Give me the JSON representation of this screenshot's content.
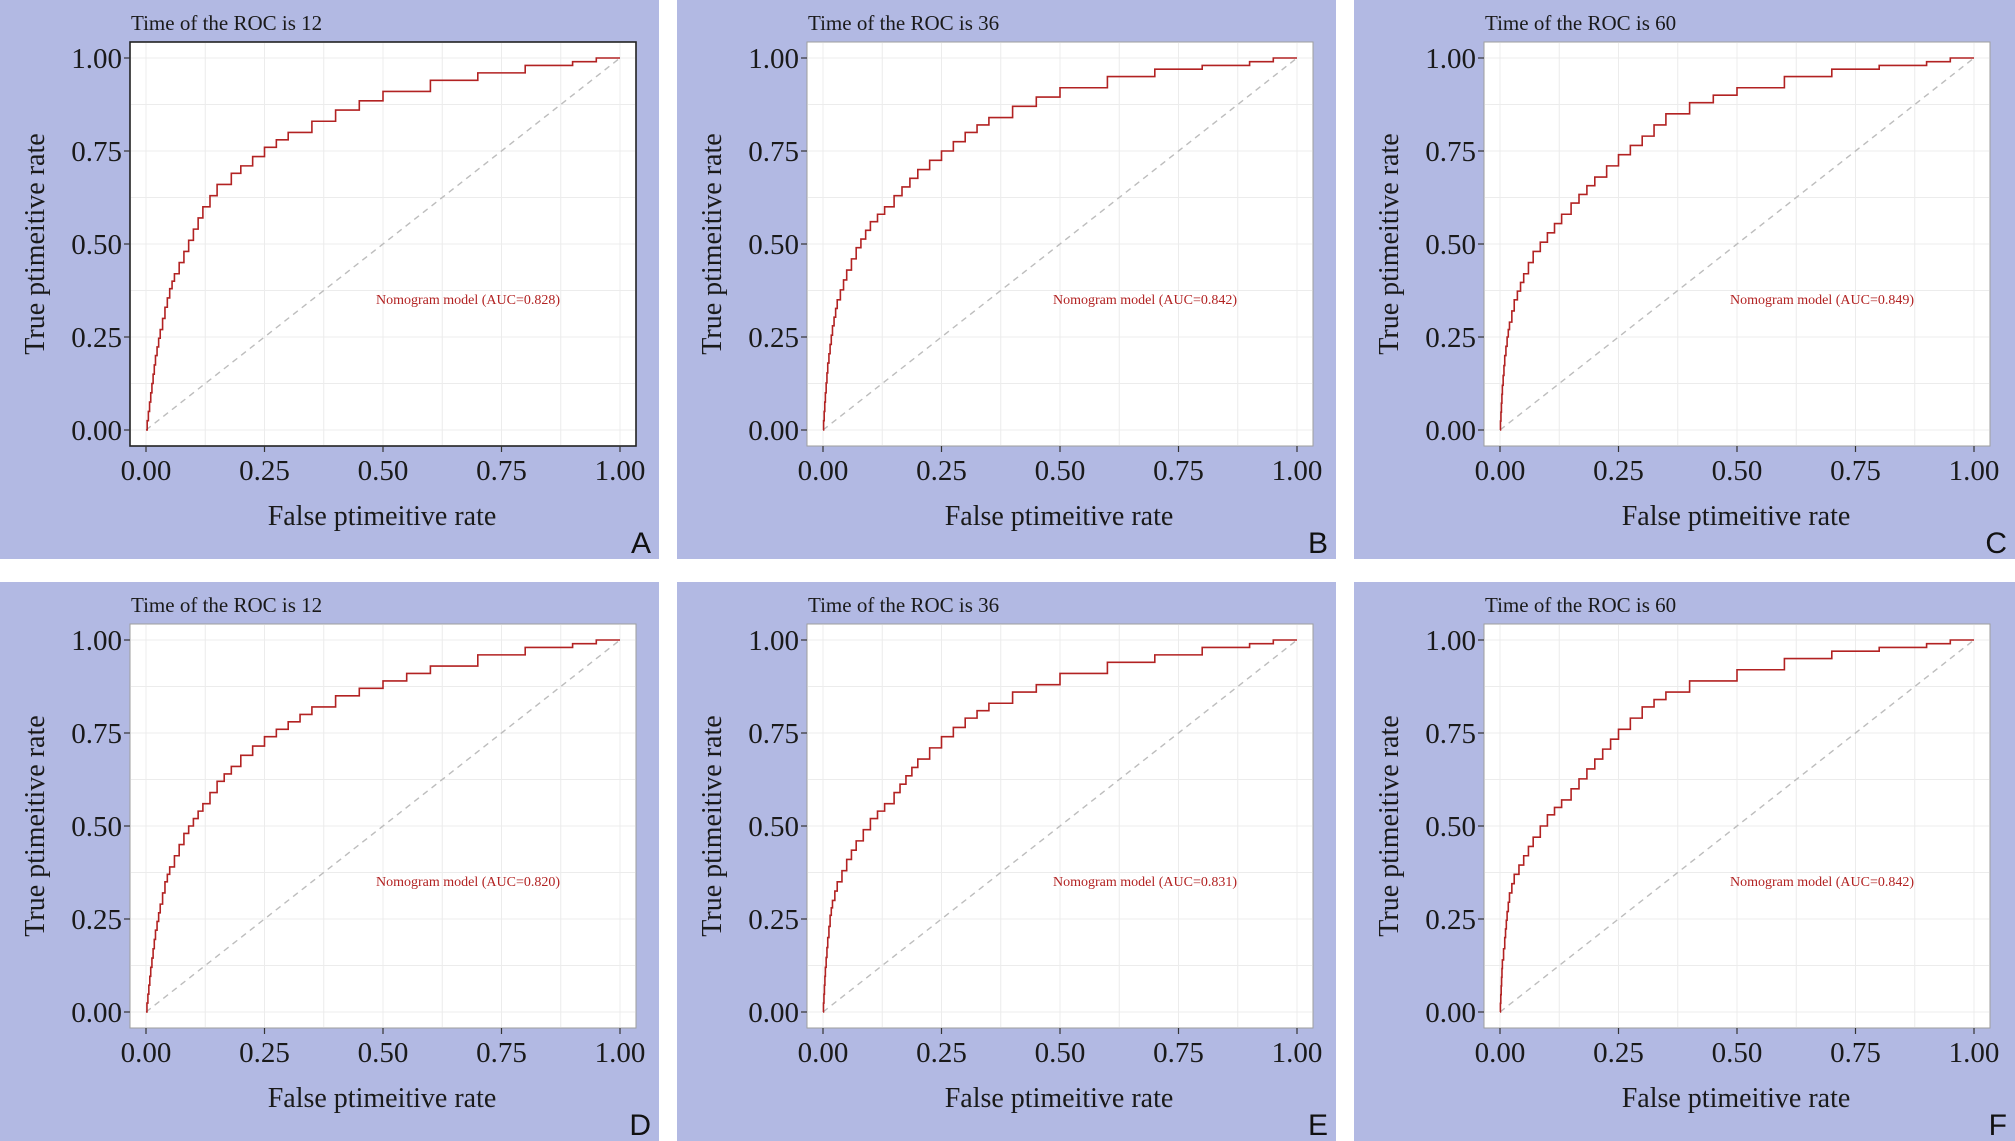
{
  "colors": {
    "panel_background": "#b2b9e3",
    "plot_background": "#ffffff",
    "roc_curve": "#b22222",
    "diagonal": "#bdbdbd",
    "gridline": "#ececec",
    "text": "#1a1a1a"
  },
  "chart_data": [
    {
      "type": "line",
      "panel_label": "A",
      "title": "Time of the ROC is 12",
      "xlabel": "False ptimeitive rate",
      "ylabel": "True ptimeitive rate",
      "xlim": [
        0,
        1
      ],
      "ylim": [
        0,
        1
      ],
      "xticks": [
        "0.00",
        "0.25",
        "0.50",
        "0.75",
        "1.00"
      ],
      "yticks": [
        "0.00",
        "0.25",
        "0.50",
        "0.75",
        "1.00"
      ],
      "grid": true,
      "plot_border": "dark",
      "annotation": "Nomogram model (AUC=0.828)",
      "series": [
        {
          "x": [
            0,
            0.01,
            0.02,
            0.03,
            0.04,
            0.05,
            0.06,
            0.08,
            0.1,
            0.12,
            0.15,
            0.18,
            0.2,
            0.25,
            0.3,
            0.35,
            0.4,
            0.5,
            0.6,
            0.7,
            0.8,
            0.9,
            0.95,
            1.0
          ],
          "y": [
            0,
            0.1,
            0.2,
            0.27,
            0.33,
            0.38,
            0.42,
            0.48,
            0.54,
            0.6,
            0.66,
            0.69,
            0.71,
            0.76,
            0.8,
            0.83,
            0.86,
            0.91,
            0.94,
            0.96,
            0.98,
            0.99,
            1.0,
            1.0
          ]
        },
        {
          "x": [
            0,
            1
          ],
          "y": [
            0,
            1
          ],
          "style": "dashed"
        }
      ]
    },
    {
      "type": "line",
      "panel_label": "B",
      "title": "Time of the ROC is 36",
      "xlabel": "False ptimeitive rate",
      "ylabel": "True ptimeitive rate",
      "xlim": [
        0,
        1
      ],
      "ylim": [
        0,
        1
      ],
      "xticks": [
        "0.00",
        "0.25",
        "0.50",
        "0.75",
        "1.00"
      ],
      "yticks": [
        "0.00",
        "0.25",
        "0.50",
        "0.75",
        "1.00"
      ],
      "grid": true,
      "plot_border": "light",
      "annotation": "Nomogram model (AUC=0.842)",
      "series": [
        {
          "x": [
            0,
            0.005,
            0.01,
            0.015,
            0.02,
            0.03,
            0.05,
            0.07,
            0.1,
            0.13,
            0.15,
            0.2,
            0.25,
            0.3,
            0.35,
            0.4,
            0.5,
            0.6,
            0.7,
            0.8,
            0.9,
            0.95,
            1.0
          ],
          "y": [
            0,
            0.1,
            0.18,
            0.23,
            0.28,
            0.35,
            0.43,
            0.49,
            0.56,
            0.6,
            0.63,
            0.7,
            0.75,
            0.8,
            0.84,
            0.87,
            0.92,
            0.95,
            0.97,
            0.98,
            0.99,
            1.0,
            1.0
          ]
        },
        {
          "x": [
            0,
            1
          ],
          "y": [
            0,
            1
          ],
          "style": "dashed"
        }
      ]
    },
    {
      "type": "line",
      "panel_label": "C",
      "title": "Time of the ROC is 60",
      "xlabel": "False ptimeitive rate",
      "ylabel": "True ptimeitive rate",
      "xlim": [
        0,
        1
      ],
      "ylim": [
        0,
        1
      ],
      "xticks": [
        "0.00",
        "0.25",
        "0.50",
        "0.75",
        "1.00"
      ],
      "yticks": [
        "0.00",
        "0.25",
        "0.50",
        "0.75",
        "1.00"
      ],
      "grid": true,
      "plot_border": "light",
      "annotation": "Nomogram model (AUC=0.849)",
      "series": [
        {
          "x": [
            0,
            0.005,
            0.01,
            0.015,
            0.02,
            0.03,
            0.05,
            0.07,
            0.1,
            0.13,
            0.15,
            0.2,
            0.25,
            0.3,
            0.35,
            0.4,
            0.5,
            0.6,
            0.7,
            0.8,
            0.9,
            0.95,
            1.0
          ],
          "y": [
            0,
            0.12,
            0.2,
            0.25,
            0.29,
            0.35,
            0.42,
            0.48,
            0.53,
            0.58,
            0.61,
            0.68,
            0.74,
            0.79,
            0.85,
            0.88,
            0.92,
            0.95,
            0.97,
            0.98,
            0.99,
            1.0,
            1.0
          ]
        },
        {
          "x": [
            0,
            1
          ],
          "y": [
            0,
            1
          ],
          "style": "dashed"
        }
      ]
    },
    {
      "type": "line",
      "panel_label": "D",
      "title": "Time of the ROC is 12",
      "xlabel": "False ptimeitive rate",
      "ylabel": "True ptimeitive rate",
      "xlim": [
        0,
        1
      ],
      "ylim": [
        0,
        1
      ],
      "xticks": [
        "0.00",
        "0.25",
        "0.50",
        "0.75",
        "1.00"
      ],
      "yticks": [
        "0.00",
        "0.25",
        "0.50",
        "0.75",
        "1.00"
      ],
      "grid": true,
      "plot_border": "light",
      "annotation": "Nomogram model (AUC=0.820)",
      "series": [
        {
          "x": [
            0,
            0.01,
            0.02,
            0.03,
            0.04,
            0.05,
            0.06,
            0.08,
            0.1,
            0.12,
            0.15,
            0.18,
            0.2,
            0.25,
            0.3,
            0.35,
            0.4,
            0.5,
            0.6,
            0.7,
            0.8,
            0.9,
            0.95,
            1.0
          ],
          "y": [
            0,
            0.12,
            0.22,
            0.29,
            0.35,
            0.39,
            0.42,
            0.48,
            0.52,
            0.56,
            0.62,
            0.66,
            0.69,
            0.74,
            0.78,
            0.82,
            0.85,
            0.89,
            0.93,
            0.96,
            0.98,
            0.99,
            1.0,
            1.0
          ]
        },
        {
          "x": [
            0,
            1
          ],
          "y": [
            0,
            1
          ],
          "style": "dashed"
        }
      ]
    },
    {
      "type": "line",
      "panel_label": "E",
      "title": "Time of the ROC is 36",
      "xlabel": "False ptimeitive rate",
      "ylabel": "True ptimeitive rate",
      "xlim": [
        0,
        1
      ],
      "ylim": [
        0,
        1
      ],
      "xticks": [
        "0.00",
        "0.25",
        "0.50",
        "0.75",
        "1.00"
      ],
      "yticks": [
        "0.00",
        "0.25",
        "0.50",
        "0.75",
        "1.00"
      ],
      "grid": true,
      "plot_border": "light",
      "annotation": "Nomogram model (AUC=0.831)",
      "series": [
        {
          "x": [
            0,
            0.005,
            0.01,
            0.015,
            0.02,
            0.03,
            0.05,
            0.07,
            0.1,
            0.13,
            0.15,
            0.2,
            0.25,
            0.3,
            0.35,
            0.4,
            0.45,
            0.5,
            0.6,
            0.7,
            0.8,
            0.9,
            0.95,
            1.0
          ],
          "y": [
            0,
            0.12,
            0.2,
            0.26,
            0.3,
            0.35,
            0.41,
            0.46,
            0.52,
            0.56,
            0.59,
            0.68,
            0.74,
            0.79,
            0.83,
            0.86,
            0.88,
            0.91,
            0.94,
            0.96,
            0.98,
            0.99,
            1.0,
            1.0
          ]
        },
        {
          "x": [
            0,
            1
          ],
          "y": [
            0,
            1
          ],
          "style": "dashed"
        }
      ]
    },
    {
      "type": "line",
      "panel_label": "F",
      "title": "Time of the ROC is 60",
      "xlabel": "False ptimeitive rate",
      "ylabel": "True ptimeitive rate",
      "xlim": [
        0,
        1
      ],
      "ylim": [
        0,
        1
      ],
      "xticks": [
        "0.00",
        "0.25",
        "0.50",
        "0.75",
        "1.00"
      ],
      "yticks": [
        "0.00",
        "0.25",
        "0.50",
        "0.75",
        "1.00"
      ],
      "grid": true,
      "plot_border": "light",
      "annotation": "Nomogram model (AUC=0.842)",
      "series": [
        {
          "x": [
            0,
            0.005,
            0.01,
            0.015,
            0.02,
            0.03,
            0.05,
            0.07,
            0.1,
            0.13,
            0.15,
            0.2,
            0.25,
            0.3,
            0.35,
            0.4,
            0.5,
            0.6,
            0.7,
            0.8,
            0.9,
            0.95,
            1.0
          ],
          "y": [
            0,
            0.14,
            0.2,
            0.27,
            0.32,
            0.37,
            0.42,
            0.47,
            0.53,
            0.57,
            0.6,
            0.68,
            0.76,
            0.82,
            0.86,
            0.89,
            0.92,
            0.95,
            0.97,
            0.98,
            0.99,
            1.0,
            1.0
          ]
        },
        {
          "x": [
            0,
            1
          ],
          "y": [
            0,
            1
          ],
          "style": "dashed"
        }
      ]
    }
  ]
}
